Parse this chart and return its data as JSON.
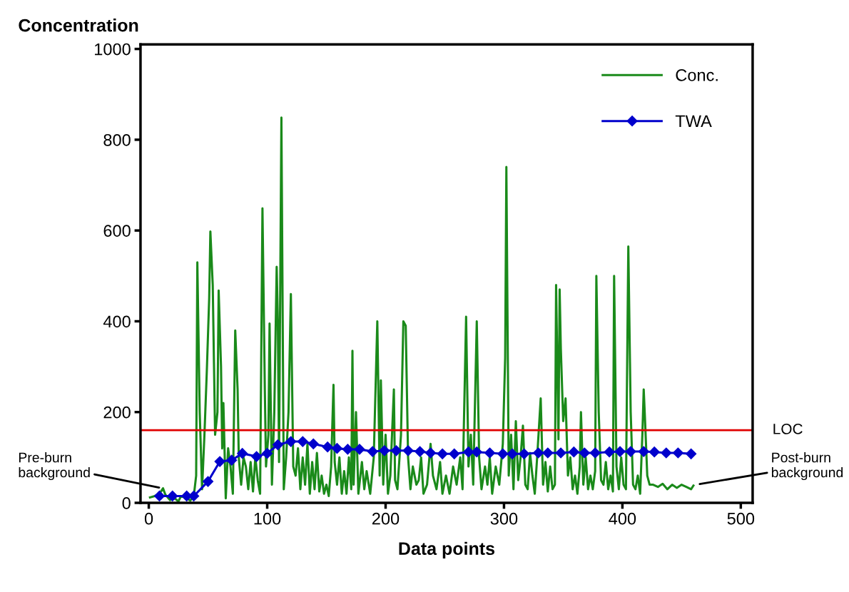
{
  "chart_data": {
    "type": "line",
    "xlabel": "Data points",
    "ylabel": "Concentration",
    "xlim": [
      -7,
      510
    ],
    "xticks": [
      0,
      100,
      200,
      300,
      400,
      500
    ],
    "ylim": [
      0,
      1010
    ],
    "yticks": [
      0,
      200,
      400,
      600,
      800,
      1000
    ],
    "grid": false,
    "legend": "top right",
    "series": [
      {
        "name": "Conc.",
        "color": "#1a8a1a",
        "marker": "none",
        "x": [
          1,
          5,
          9,
          12,
          14,
          18,
          22,
          25,
          27,
          31,
          35,
          38,
          40,
          41,
          43,
          45,
          47,
          49,
          51,
          52,
          54,
          56,
          58,
          59,
          61,
          62,
          63,
          65,
          67,
          69,
          71,
          73,
          75,
          76,
          78,
          80,
          82,
          84,
          86,
          88,
          90,
          92,
          94,
          96,
          98,
          99,
          101,
          102,
          104,
          106,
          108,
          109,
          110,
          112,
          114,
          116,
          118,
          120,
          122,
          124,
          126,
          128,
          130,
          132,
          134,
          136,
          138,
          140,
          142,
          144,
          146,
          148,
          150,
          152,
          154,
          156,
          157,
          159,
          161,
          163,
          165,
          167,
          169,
          171,
          172,
          173,
          175,
          177,
          180,
          182,
          184,
          187,
          190,
          193,
          195,
          196,
          198,
          200,
          202,
          204,
          207,
          208,
          210,
          213,
          215,
          217,
          219,
          221,
          223,
          226,
          228,
          230,
          232,
          235,
          238,
          240,
          243,
          246,
          248,
          251,
          254,
          257,
          260,
          263,
          265,
          268,
          270,
          272,
          274,
          277,
          279,
          281,
          284,
          286,
          288,
          290,
          293,
          296,
          299,
          301,
          302,
          304,
          306,
          308,
          310,
          312,
          314,
          316,
          318,
          320,
          322,
          324,
          326,
          328,
          331,
          333,
          335,
          337,
          339,
          341,
          343,
          344,
          346,
          347,
          348,
          350,
          352,
          354,
          356,
          358,
          360,
          362,
          364,
          365,
          367,
          369,
          371,
          373,
          375,
          377,
          378,
          380,
          382,
          384,
          386,
          388,
          390,
          392,
          393,
          395,
          397,
          399,
          401,
          403,
          405,
          407,
          409,
          411,
          413,
          415,
          417,
          418,
          419,
          421,
          423,
          426,
          430,
          434,
          438,
          442,
          446,
          450,
          454,
          458,
          460
        ],
        "values": [
          12,
          15,
          20,
          32,
          18,
          6,
          10,
          3,
          14,
          12,
          5,
          15,
          60,
          530,
          200,
          30,
          150,
          290,
          450,
          598,
          480,
          150,
          200,
          468,
          300,
          120,
          220,
          10,
          120,
          80,
          20,
          380,
          250,
          100,
          40,
          100,
          80,
          30,
          90,
          25,
          100,
          50,
          20,
          649,
          250,
          80,
          150,
          395,
          40,
          200,
          520,
          400,
          90,
          849,
          30,
          100,
          200,
          460,
          80,
          60,
          120,
          30,
          100,
          40,
          130,
          20,
          90,
          30,
          110,
          25,
          60,
          20,
          40,
          15,
          80,
          260,
          90,
          40,
          100,
          20,
          70,
          20,
          100,
          30,
          335,
          40,
          200,
          20,
          90,
          30,
          70,
          20,
          100,
          400,
          60,
          270,
          40,
          150,
          20,
          60,
          250,
          50,
          30,
          150,
          400,
          390,
          100,
          30,
          80,
          40,
          50,
          100,
          20,
          40,
          130,
          60,
          30,
          90,
          20,
          60,
          20,
          80,
          40,
          100,
          30,
          410,
          80,
          150,
          40,
          400,
          100,
          30,
          80,
          40,
          100,
          20,
          80,
          40,
          130,
          320,
          740,
          60,
          150,
          30,
          180,
          50,
          100,
          170,
          40,
          30,
          110,
          60,
          20,
          100,
          230,
          40,
          90,
          25,
          80,
          30,
          40,
          480,
          140,
          470,
          340,
          180,
          230,
          60,
          100,
          30,
          60,
          20,
          80,
          200,
          40,
          100,
          30,
          60,
          30,
          70,
          500,
          200,
          50,
          40,
          90,
          30,
          60,
          25,
          500,
          80,
          30,
          100,
          40,
          30,
          565,
          200,
          40,
          30,
          60,
          20,
          160,
          250,
          190,
          60,
          40,
          40,
          35,
          42,
          30,
          40,
          33,
          40,
          35,
          30,
          38
        ]
      },
      {
        "name": "TWA",
        "color": "#0000cc",
        "marker": "diamond",
        "x": [
          9,
          20,
          32,
          38,
          50,
          60,
          70,
          79,
          91,
          100,
          109,
          120,
          130,
          139,
          151,
          159,
          168,
          178,
          189,
          199,
          209,
          219,
          229,
          238,
          248,
          258,
          270,
          277,
          288,
          299,
          307,
          317,
          329,
          337,
          348,
          359,
          368,
          377,
          389,
          398,
          407,
          418,
          427,
          437,
          447,
          458
        ],
        "values": [
          15,
          15,
          15,
          15,
          47,
          91,
          94,
          109,
          102,
          109,
          128,
          135,
          135,
          130,
          123,
          120,
          118,
          118,
          113,
          115,
          115,
          115,
          113,
          110,
          108,
          108,
          112,
          112,
          110,
          108,
          108,
          108,
          110,
          110,
          110,
          112,
          110,
          110,
          112,
          113,
          113,
          113,
          112,
          110,
          110,
          108
        ]
      }
    ],
    "ref_lines": [
      {
        "axis": "y",
        "value": 160,
        "label": "LOC",
        "color": "#e00000"
      }
    ],
    "annotations": [
      {
        "text": "Pre-burn\nbackground",
        "x": 12,
        "y": 32
      },
      {
        "text": "Post-burn\nbackground",
        "x": 462,
        "y": 40
      }
    ]
  }
}
